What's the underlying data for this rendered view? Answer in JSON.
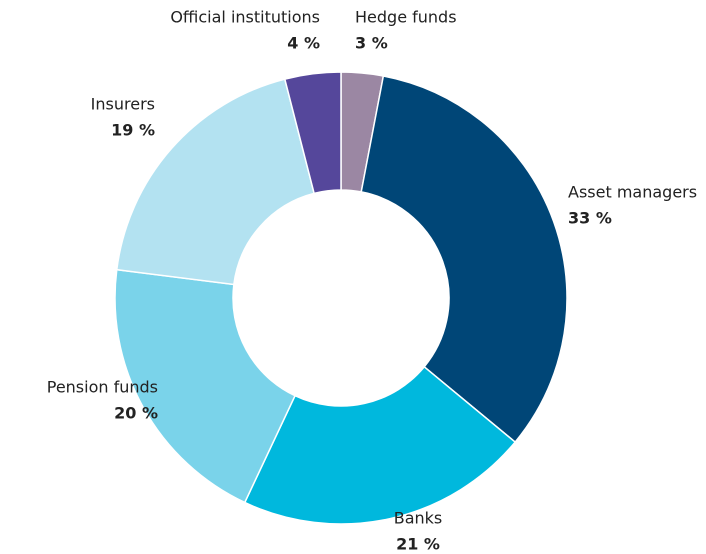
{
  "chart_data": {
    "type": "pie",
    "categories": [
      "Hedge funds",
      "Asset managers",
      "Banks",
      "Pension funds",
      "Insurers",
      "Official institutions"
    ],
    "values": [
      3,
      33,
      21,
      20,
      19,
      4
    ],
    "value_labels": [
      "3 %",
      "33 %",
      "21 %",
      "20 %",
      "19 %",
      "4 %"
    ],
    "colors": [
      "#9b87a3",
      "#004677",
      "#00b8dd",
      "#7ad3ea",
      "#b3e2f1",
      "#55479b"
    ],
    "donut": true
  }
}
